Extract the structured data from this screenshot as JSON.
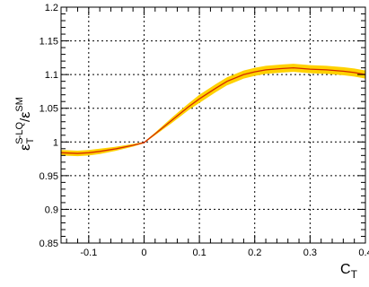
{
  "chart_data": {
    "type": "line",
    "xlabel": {
      "main": "C",
      "sub": "T"
    },
    "ylabel": {
      "eps": "ε",
      "sup": "S",
      "sub": "T",
      "sup2": "-LQ",
      "slash": "/",
      "eps2": "ε",
      "sup3": "SM"
    },
    "xlim": [
      -0.15,
      0.4
    ],
    "ylim": [
      0.85,
      1.2
    ],
    "grid": "horizontal dotted",
    "x_ticks": [
      {
        "v": -0.1,
        "label": "-0.1"
      },
      {
        "v": 0,
        "label": "0"
      },
      {
        "v": 0.1,
        "label": "0.1"
      },
      {
        "v": 0.2,
        "label": "0.2"
      },
      {
        "v": 0.3,
        "label": "0.3"
      },
      {
        "v": 0.4,
        "label": "0.4"
      }
    ],
    "y_ticks": [
      {
        "v": 0.85,
        "label": "0.85"
      },
      {
        "v": 0.9,
        "label": "0.9"
      },
      {
        "v": 0.95,
        "label": "0.95"
      },
      {
        "v": 1.0,
        "label": "1"
      },
      {
        "v": 1.05,
        "label": "1.05"
      },
      {
        "v": 1.1,
        "label": "1.1"
      },
      {
        "v": 1.15,
        "label": "1.15"
      },
      {
        "v": 1.2,
        "label": "1.2"
      }
    ],
    "series": [
      {
        "color": "#d42a00",
        "band_color": "#ffd200",
        "x": [
          -0.15,
          -0.12,
          -0.1,
          -0.08,
          -0.05,
          -0.02,
          0.0,
          0.02,
          0.05,
          0.08,
          0.1,
          0.13,
          0.15,
          0.18,
          0.2,
          0.22,
          0.25,
          0.27,
          0.3,
          0.33,
          0.36,
          0.38,
          0.4
        ],
        "y": [
          0.984,
          0.983,
          0.984,
          0.986,
          0.99,
          0.995,
          0.999,
          1.012,
          1.032,
          1.052,
          1.064,
          1.08,
          1.09,
          1.1,
          1.104,
          1.107,
          1.109,
          1.11,
          1.108,
          1.107,
          1.105,
          1.103,
          1.1
        ],
        "band_halfwidth": [
          0.004,
          0.004,
          0.004,
          0.004,
          0.003,
          0.002,
          0.001,
          0.002,
          0.004,
          0.005,
          0.006,
          0.006,
          0.006,
          0.006,
          0.006,
          0.006,
          0.006,
          0.006,
          0.006,
          0.006,
          0.006,
          0.006,
          0.006
        ]
      }
    ]
  }
}
